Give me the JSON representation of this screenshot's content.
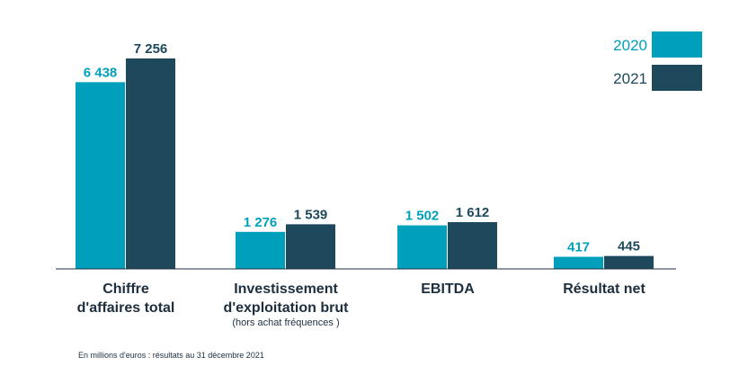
{
  "chart_data": {
    "type": "bar",
    "categories": [
      {
        "label_lines": [
          "Chiffre",
          "d'affaires total"
        ],
        "sub": ""
      },
      {
        "label_lines": [
          "Investissement",
          "d'exploitation brut"
        ],
        "sub": "(hors achat fréquences )"
      },
      {
        "label_lines": [
          "EBITDA"
        ],
        "sub": ""
      },
      {
        "label_lines": [
          "Résultat net"
        ],
        "sub": ""
      }
    ],
    "series": [
      {
        "name": "2020",
        "color": "#00a0bd",
        "values": [
          6438,
          1276,
          1502,
          417
        ],
        "labels": [
          "6 438",
          "1 276",
          "1 502",
          "417"
        ]
      },
      {
        "name": "2021",
        "color": "#1e495c",
        "values": [
          7256,
          1539,
          1612,
          445
        ],
        "labels": [
          "7 256",
          "1 539",
          "1 612",
          "445"
        ]
      }
    ],
    "ylim": [
      0,
      7256
    ],
    "legend_position": "top-right",
    "grid": false
  },
  "footnote": "En millions d'euros : résultats au 31 décembre 2021"
}
